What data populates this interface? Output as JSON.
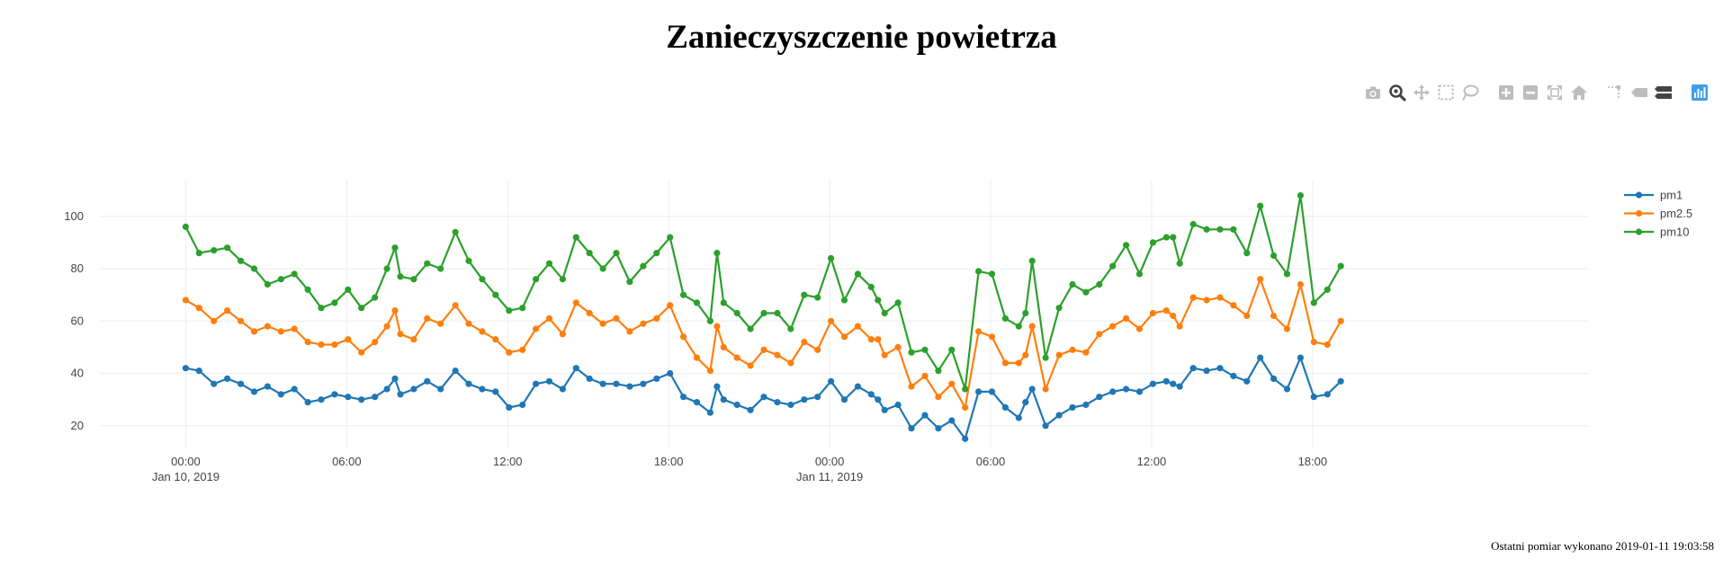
{
  "page": {
    "title": "Zanieczyszczenie powietrza",
    "footer": "Ostatni pomiar wykonano 2019-01-11 19:03:58"
  },
  "modebar": {
    "icons": [
      "camera-icon",
      "zoom-icon",
      "pan-icon",
      "box-select-icon",
      "lasso-select-icon",
      "zoom-in-icon",
      "zoom-out-icon",
      "autoscale-icon",
      "reset-axes-icon",
      "spike-lines-icon",
      "hover-closest-icon",
      "hover-compare-icon",
      "plotly-logo-icon"
    ],
    "color": "#bdbdbd",
    "active_color": "#444444",
    "logo_color": "#3f9ee8"
  },
  "chart_data": {
    "type": "line",
    "title": "Zanieczyszczenie powietrza",
    "xlabel": "",
    "ylabel": "",
    "grid": true,
    "legend_position": "top-right",
    "ylim": [
      11,
      114
    ],
    "x_range_hours": [
      -3.2,
      52.3
    ],
    "y_ticks": [
      20,
      40,
      60,
      80,
      100
    ],
    "x_ticks": [
      {
        "h": 0,
        "label": "00:00",
        "sub": "Jan 10, 2019"
      },
      {
        "h": 6,
        "label": "06:00",
        "sub": ""
      },
      {
        "h": 12,
        "label": "12:00",
        "sub": ""
      },
      {
        "h": 18,
        "label": "18:00",
        "sub": ""
      },
      {
        "h": 24,
        "label": "00:00",
        "sub": "Jan 11, 2019"
      },
      {
        "h": 30,
        "label": "06:00",
        "sub": ""
      },
      {
        "h": 36,
        "label": "12:00",
        "sub": ""
      },
      {
        "h": 42,
        "label": "18:00",
        "sub": ""
      }
    ],
    "x_hours": [
      0,
      0.5,
      1.05,
      1.55,
      2.05,
      2.55,
      3.05,
      3.55,
      4.05,
      4.55,
      5.05,
      5.55,
      6.05,
      6.55,
      7.05,
      7.5,
      7.8,
      8.0,
      8.5,
      9.0,
      9.5,
      10.05,
      10.55,
      11.05,
      11.55,
      12.05,
      12.55,
      13.05,
      13.55,
      14.05,
      14.55,
      15.05,
      15.55,
      16.05,
      16.55,
      17.05,
      17.55,
      18.05,
      18.55,
      19.05,
      19.55,
      19.8,
      20.05,
      20.55,
      21.05,
      21.55,
      22.05,
      22.55,
      23.05,
      23.55,
      24.05,
      24.55,
      25.05,
      25.55,
      25.8,
      26.05,
      26.55,
      27.05,
      27.55,
      28.05,
      28.55,
      29.05,
      29.55,
      30.05,
      30.55,
      31.05,
      31.3,
      31.55,
      32.05,
      32.55,
      33.05,
      33.55,
      34.05,
      34.55,
      35.05,
      35.55,
      36.05,
      36.55,
      36.8,
      37.05,
      37.55,
      38.05,
      38.55,
      39.05,
      39.55,
      40.05,
      40.55,
      41.05,
      41.55,
      42.05,
      42.55,
      43.05
    ],
    "series": [
      {
        "name": "pm1",
        "color": "#1f77b4",
        "values": [
          42,
          41,
          36,
          38,
          36,
          33,
          35,
          32,
          34,
          29,
          30,
          32,
          31,
          30,
          31,
          34,
          38,
          32,
          34,
          37,
          34,
          41,
          36,
          34,
          33,
          27,
          28,
          36,
          37,
          34,
          42,
          38,
          36,
          36,
          35,
          36,
          38,
          40,
          31,
          29,
          25,
          35,
          30,
          28,
          26,
          31,
          29,
          28,
          30,
          31,
          37,
          30,
          35,
          32,
          30,
          26,
          28,
          19,
          24,
          19,
          22,
          15,
          33,
          33,
          27,
          23,
          29,
          34,
          20,
          24,
          27,
          28,
          31,
          33,
          34,
          33,
          36,
          37,
          36,
          35,
          42,
          41,
          42,
          39,
          37,
          46,
          38,
          34,
          46,
          31,
          32,
          37
        ]
      },
      {
        "name": "pm2.5",
        "color": "#ff7f0e",
        "values": [
          68,
          65,
          60,
          64,
          60,
          56,
          58,
          56,
          57,
          52,
          51,
          51,
          53,
          48,
          52,
          58,
          64,
          55,
          53,
          61,
          59,
          66,
          59,
          56,
          53,
          48,
          49,
          57,
          61,
          55,
          67,
          63,
          59,
          61,
          56,
          59,
          61,
          66,
          54,
          46,
          41,
          58,
          50,
          46,
          43,
          49,
          47,
          44,
          52,
          49,
          60,
          54,
          58,
          53,
          53,
          47,
          50,
          35,
          39,
          31,
          36,
          27,
          56,
          54,
          44,
          44,
          47,
          58,
          34,
          47,
          49,
          48,
          55,
          58,
          61,
          57,
          63,
          64,
          62,
          58,
          69,
          68,
          69,
          66,
          62,
          76,
          62,
          57,
          74,
          52,
          51,
          60
        ]
      },
      {
        "name": "pm10",
        "color": "#2ca02c",
        "values": [
          96,
          86,
          87,
          88,
          83,
          80,
          74,
          76,
          78,
          72,
          65,
          67,
          72,
          65,
          69,
          80,
          88,
          77,
          76,
          82,
          80,
          94,
          83,
          76,
          70,
          64,
          65,
          76,
          82,
          76,
          92,
          86,
          80,
          86,
          75,
          81,
          86,
          92,
          70,
          67,
          60,
          86,
          67,
          63,
          57,
          63,
          63,
          57,
          70,
          69,
          84,
          68,
          78,
          73,
          68,
          63,
          67,
          48,
          49,
          41,
          49,
          34,
          79,
          78,
          61,
          58,
          63,
          83,
          46,
          65,
          74,
          71,
          74,
          81,
          89,
          78,
          90,
          92,
          92,
          82,
          97,
          95,
          95,
          95,
          86,
          104,
          85,
          78,
          108,
          67,
          72,
          81
        ]
      }
    ]
  }
}
